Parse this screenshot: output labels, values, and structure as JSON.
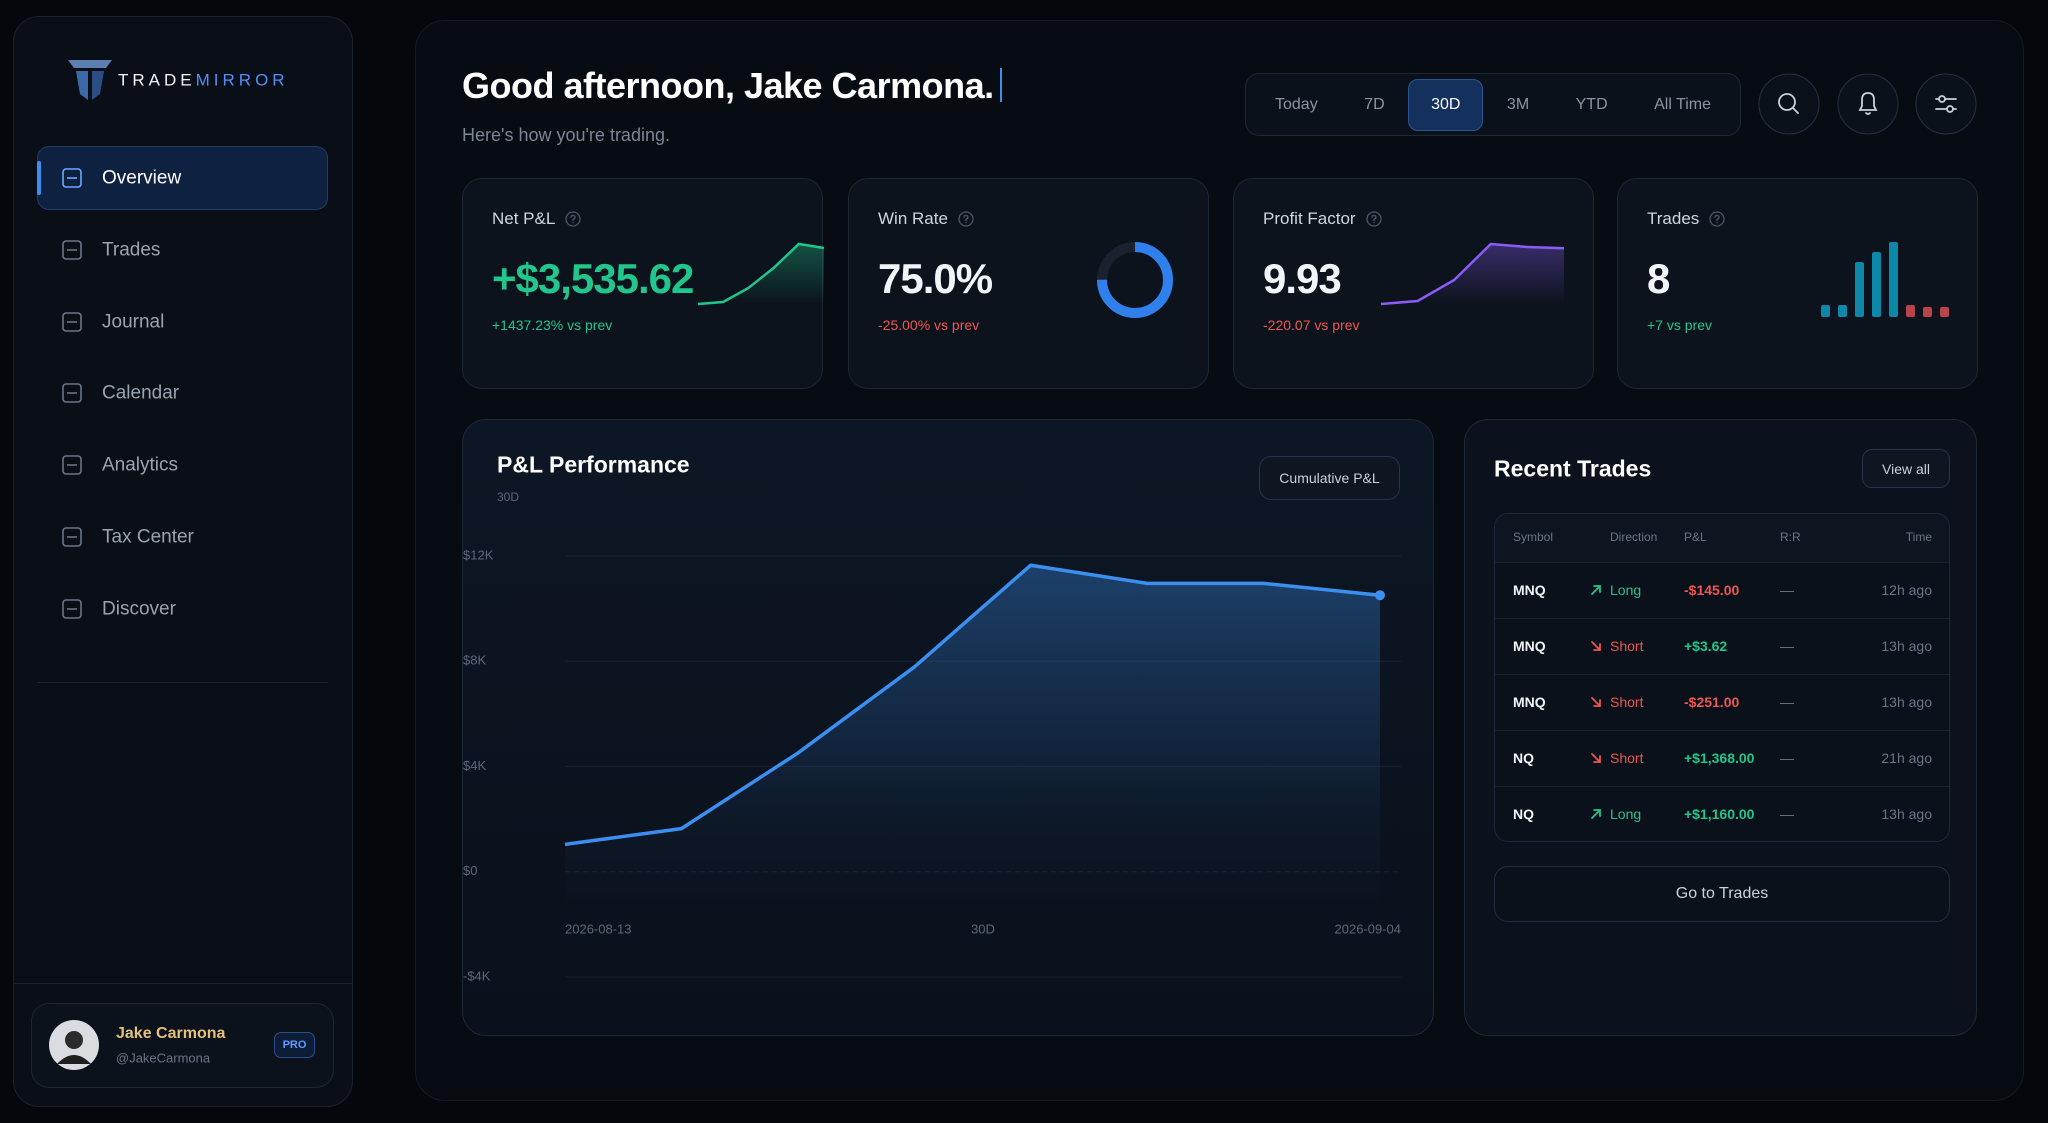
{
  "sidebar": {
    "brand": [
      "TRADE",
      "MIRROR"
    ],
    "nav": [
      "Overview",
      "Trades",
      "Journal",
      "Calendar",
      "Analytics",
      "Tax Center",
      "Discover"
    ],
    "active": 0,
    "user": {
      "name": "Jake Carmona",
      "handle": "@JakeCarmona",
      "badge": "PRO"
    }
  },
  "header": {
    "greeting": "Good afternoon, Jake Carmona.",
    "subtitle": "Here's how you're trading.",
    "ranges": [
      "Today",
      "7D",
      "30D",
      "3M",
      "YTD",
      "All Time"
    ],
    "active_range": 2
  },
  "cards": [
    {
      "title": "Net P&L",
      "value": "+$3,535.62",
      "delta": "+1437.23% vs prev",
      "spark": {
        "type": "area",
        "color": "#22c58b",
        "values": [
          0,
          1,
          8,
          18,
          30,
          28
        ]
      }
    },
    {
      "title": "Win Rate",
      "value": "75.0%",
      "delta": "-25.00% vs prev",
      "spark": {
        "type": "donut",
        "color": "#2f80ed",
        "value": 75
      }
    },
    {
      "title": "Profit Factor",
      "value": "9.93",
      "delta": "-220.07 vs prev",
      "spark": {
        "type": "area",
        "color": "#8b5cf6",
        "values": [
          0,
          1,
          8,
          20,
          19,
          18.6
        ]
      }
    },
    {
      "title": "Trades",
      "value": "8",
      "delta": "+7 vs prev",
      "spark": {
        "type": "bars",
        "values": [
          1.2,
          1.2,
          5.5,
          6.5,
          7.5,
          1.2,
          1,
          1
        ],
        "colors": [
          "#0e88a8",
          "#0e88a8",
          "#0e88a8",
          "#0e88a8",
          "#0e88a8",
          "#b8434d",
          "#b8434d",
          "#b8434d"
        ]
      }
    }
  ],
  "performance": {
    "type": "line",
    "title": "P&L Performance",
    "subtitle": "30D",
    "button": "Cumulative P&L",
    "color": "#3b8ff0",
    "values": [
      1040,
      1640,
      4510,
      7780,
      11650,
      10960,
      10960,
      10510
    ],
    "ylim": [
      -4000,
      12000
    ],
    "yticks": [
      {
        "value": 12000,
        "label": "$12K"
      },
      {
        "value": 8000,
        "label": "$8K"
      },
      {
        "value": 4000,
        "label": "$4K"
      },
      {
        "value": 0,
        "label": "$0"
      },
      {
        "value": -4000,
        "label": "-$4K"
      }
    ],
    "xlabels": [
      "2026-08-13",
      "30D",
      "2026-09-04"
    ],
    "grid": true
  },
  "recent_trades": {
    "title": "Recent Trades",
    "button": "View all",
    "columns": [
      "Symbol",
      "Direction",
      "P&L",
      "R:R",
      "Time"
    ],
    "rows": [
      {
        "symbol": "MNQ",
        "direction": "Long",
        "arrow": "up",
        "direction_color": "#22c58b",
        "pnl": "-$145.00",
        "rr": "—",
        "time": "12h ago"
      },
      {
        "symbol": "MNQ",
        "direction": "Short",
        "arrow": "down",
        "direction_color": "#f0564f",
        "pnl": "+$3.62",
        "rr": "—",
        "time": "13h ago"
      },
      {
        "symbol": "MNQ",
        "direction": "Short",
        "arrow": "down",
        "direction_color": "#f0564f",
        "pnl": "-$251.00",
        "rr": "—",
        "time": "13h ago"
      },
      {
        "symbol": "NQ",
        "direction": "Short",
        "arrow": "down",
        "direction_color": "#f0564f",
        "pnl": "+$1,368.00",
        "rr": "—",
        "time": "21h ago"
      },
      {
        "symbol": "NQ",
        "direction": "Long",
        "arrow": "up",
        "direction_color": "#22c58b",
        "pnl": "+$1,160.00",
        "rr": "—",
        "time": "13h ago"
      }
    ],
    "footer_button": "Go to Trades"
  }
}
